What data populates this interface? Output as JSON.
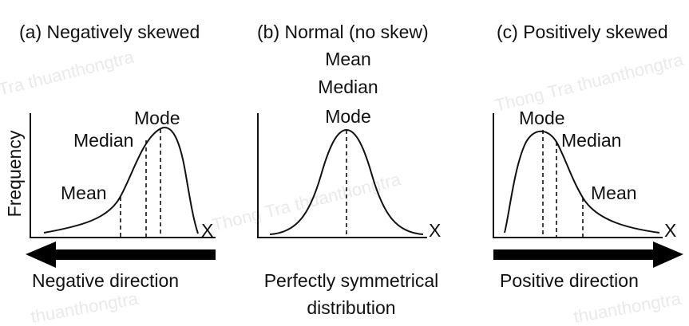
{
  "panels": {
    "a": {
      "title": "(a) Negatively skewed",
      "labels": {
        "mode": "Mode",
        "median": "Median",
        "mean": "Mean",
        "ylabel": "Frequency",
        "xlabel": "X"
      },
      "direction": "Negative direction"
    },
    "b": {
      "title": "(b) Normal (no skew)",
      "labels": {
        "mean": "Mean",
        "median": "Median",
        "mode": "Mode",
        "xlabel": "X"
      },
      "caption_line1": "Perfectly symmetrical",
      "caption_line2": "distribution"
    },
    "c": {
      "title": "(c) Positively skewed",
      "labels": {
        "mode": "Mode",
        "median": "Median",
        "mean": "Mean",
        "xlabel": "X"
      },
      "direction": "Positive direction"
    }
  },
  "watermark": {
    "a": "Tra thuanthongtra",
    "b": "Thong Tra thuanthongtra",
    "c": "Thong Tra thuanthongtra",
    "d": "thuanthongtra",
    "e": "thuanthongtra"
  }
}
